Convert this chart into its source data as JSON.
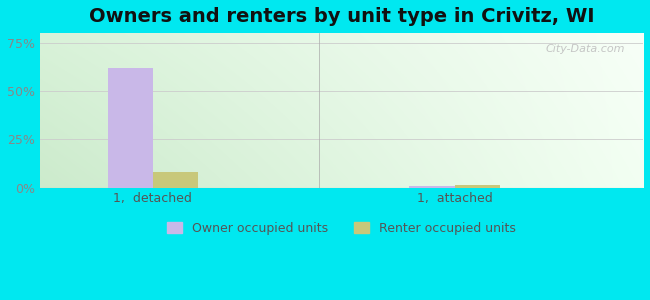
{
  "title": "Owners and renters by unit type in Crivitz, WI",
  "categories": [
    "1,  detached",
    "1,  attached"
  ],
  "owner_values": [
    62.0,
    1.0
  ],
  "renter_values": [
    8.0,
    1.2
  ],
  "owner_color": "#c9b8e8",
  "renter_color": "#c8c87a",
  "bar_width": 0.3,
  "ylim": [
    0,
    80
  ],
  "yticks": [
    0,
    25,
    50,
    75
  ],
  "yticklabels": [
    "0%",
    "25%",
    "50%",
    "75%"
  ],
  "legend_owner": "Owner occupied units",
  "legend_renter": "Renter occupied units",
  "outer_bg": "#00e8f0",
  "plot_bg_topleft": [
    0.85,
    0.95,
    0.85
  ],
  "plot_bg_topright": [
    0.97,
    1.0,
    0.97
  ],
  "plot_bg_bottomleft": [
    0.8,
    0.92,
    0.8
  ],
  "plot_bg_bottomright": [
    0.95,
    1.0,
    0.95
  ],
  "watermark": "City-Data.com",
  "title_fontsize": 14,
  "axis_fontsize": 9,
  "grid_color": "#cccccc",
  "tick_color": "#888888"
}
